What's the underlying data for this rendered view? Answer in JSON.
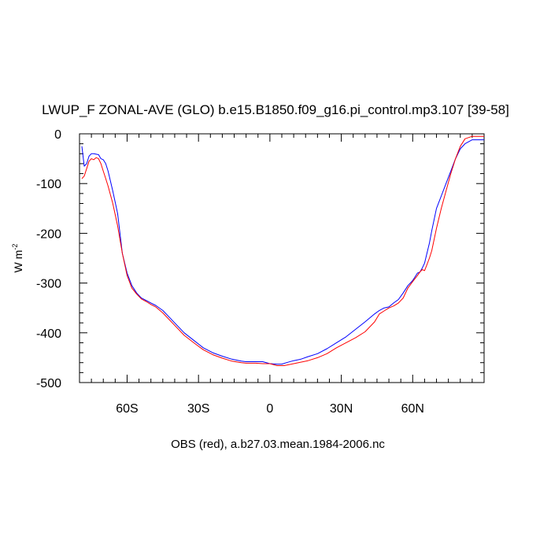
{
  "chart_data": {
    "type": "line",
    "title": "LWUP_F ZONAL-AVE (GLO) b.e15.B1850.f09_g16.pi_control.mp3.107 [39-58]",
    "xlabel": "OBS (red), a.b27.03.mean.1984-2006.nc",
    "ylabel": "W m",
    "ylabel_superscript": "-2",
    "xlim": [
      -80,
      90
    ],
    "ylim": [
      -500,
      0
    ],
    "x_ticks": [
      {
        "value": -60,
        "label": "60S"
      },
      {
        "value": -30,
        "label": "30S"
      },
      {
        "value": 0,
        "label": "0"
      },
      {
        "value": 30,
        "label": "30N"
      },
      {
        "value": 60,
        "label": "60N"
      }
    ],
    "y_ticks": [
      {
        "value": 0,
        "label": "0"
      },
      {
        "value": -100,
        "label": "-100"
      },
      {
        "value": -200,
        "label": "-200"
      },
      {
        "value": -300,
        "label": "-300"
      },
      {
        "value": -400,
        "label": "-400"
      },
      {
        "value": -500,
        "label": "-500"
      }
    ],
    "series": [
      {
        "name": "b.e15.B1850.f09_g16.pi_control.mp3.107",
        "color": "#0000ff",
        "x": [
          -79,
          -78,
          -77,
          -76,
          -75,
          -74,
          -72,
          -71,
          -70,
          -69,
          -68,
          -67,
          -66,
          -64,
          -62,
          -60,
          -58,
          -56,
          -54,
          -52,
          -50,
          -48,
          -45,
          -42,
          -40,
          -36,
          -32,
          -28,
          -24,
          -20,
          -16,
          -12,
          -10,
          -6,
          -3,
          0,
          3,
          5,
          7,
          10,
          13,
          16,
          20,
          24,
          28,
          32,
          36,
          40,
          44,
          46,
          48,
          50,
          52,
          54,
          56,
          58,
          60,
          62,
          63,
          64,
          65,
          66,
          67,
          68,
          70,
          72,
          74,
          76,
          78,
          80,
          82,
          85,
          90
        ],
        "y": [
          -25,
          -65,
          -60,
          -45,
          -40,
          -40,
          -42,
          -50,
          -52,
          -60,
          -75,
          -95,
          -115,
          -160,
          -240,
          -280,
          -305,
          -320,
          -330,
          -335,
          -340,
          -345,
          -355,
          -370,
          -380,
          -400,
          -415,
          -430,
          -440,
          -447,
          -453,
          -457,
          -458,
          -458,
          -458,
          -462,
          -463,
          -463,
          -460,
          -456,
          -453,
          -448,
          -442,
          -432,
          -420,
          -408,
          -393,
          -378,
          -362,
          -355,
          -350,
          -348,
          -340,
          -333,
          -320,
          -305,
          -295,
          -280,
          -278,
          -270,
          -260,
          -240,
          -220,
          -195,
          -150,
          -125,
          -100,
          -75,
          -50,
          -30,
          -20,
          -12,
          -12
        ]
      },
      {
        "name": "OBS",
        "color": "#ff0000",
        "x": [
          -79,
          -78,
          -77,
          -76,
          -75,
          -74,
          -73,
          -72,
          -71,
          -70,
          -69,
          -68,
          -66,
          -64,
          -62,
          -60,
          -58,
          -56,
          -54,
          -52,
          -50,
          -48,
          -45,
          -42,
          -40,
          -36,
          -32,
          -28,
          -24,
          -20,
          -16,
          -12,
          -10,
          -6,
          -3,
          0,
          3,
          6,
          9,
          12,
          16,
          20,
          24,
          28,
          32,
          36,
          40,
          44,
          46,
          48,
          50,
          52,
          54,
          56,
          58,
          60,
          62,
          63,
          64,
          65,
          66,
          67,
          68,
          70,
          72,
          74,
          76,
          78,
          80,
          82,
          85,
          90
        ],
        "y": [
          -90,
          -85,
          -70,
          -55,
          -50,
          -52,
          -48,
          -50,
          -60,
          -75,
          -90,
          -105,
          -140,
          -185,
          -240,
          -285,
          -310,
          -322,
          -332,
          -337,
          -343,
          -348,
          -360,
          -375,
          -385,
          -405,
          -420,
          -434,
          -444,
          -451,
          -457,
          -460,
          -461,
          -461,
          -462,
          -462,
          -466,
          -466,
          -463,
          -460,
          -456,
          -450,
          -442,
          -430,
          -420,
          -410,
          -398,
          -378,
          -362,
          -356,
          -350,
          -346,
          -340,
          -330,
          -310,
          -297,
          -285,
          -278,
          -273,
          -275,
          -263,
          -250,
          -235,
          -190,
          -150,
          -115,
          -80,
          -50,
          -25,
          -10,
          -5,
          -5
        ]
      }
    ]
  }
}
